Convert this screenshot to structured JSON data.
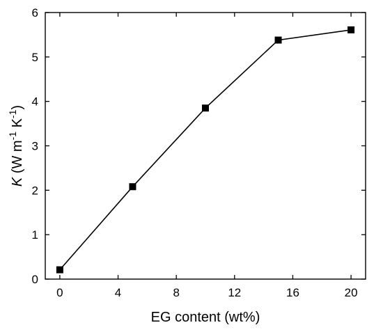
{
  "chart_data": {
    "type": "line",
    "title": "",
    "xlabel": "EG content (wt%)",
    "ylabel": {
      "symbol": "K",
      "unit_open": " (W m",
      "exp1": "-1",
      "unit_mid": " K",
      "exp2": "-1",
      "unit_close": ")"
    },
    "xlim": [
      -1,
      21
    ],
    "ylim": [
      0,
      6
    ],
    "xticks": [
      "0",
      "4",
      "8",
      "12",
      "16",
      "20"
    ],
    "yticks": [
      "0",
      "1",
      "2",
      "3",
      "4",
      "5",
      "6"
    ],
    "grid": false,
    "legend": "none",
    "series": [
      {
        "x": [
          0,
          5,
          10,
          15,
          20
        ],
        "y": [
          0.21,
          2.08,
          3.85,
          5.38,
          5.61
        ],
        "marker": "square",
        "color": "#000000"
      }
    ]
  }
}
